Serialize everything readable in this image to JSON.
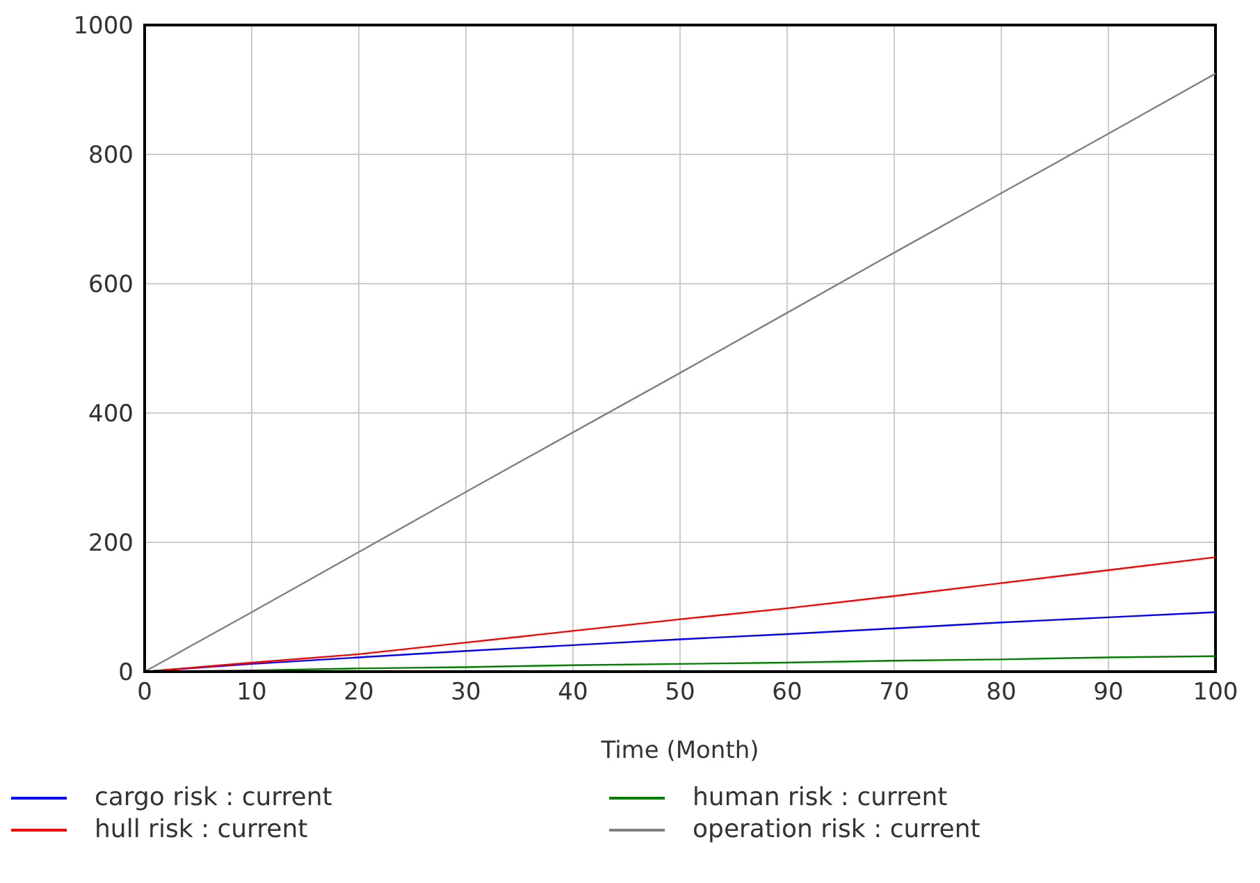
{
  "chart_data": {
    "type": "line",
    "xlabel": "Time (Month)",
    "x": [
      0,
      10,
      20,
      30,
      40,
      50,
      60,
      70,
      80,
      90,
      100
    ],
    "xlim": [
      0,
      100
    ],
    "xticks": [
      0,
      10,
      20,
      30,
      40,
      50,
      60,
      70,
      80,
      90,
      100
    ],
    "ylim": [
      0,
      1000
    ],
    "yticks": [
      0,
      200,
      400,
      600,
      800,
      1000
    ],
    "grid": true,
    "legend": "bottom",
    "marker": "none",
    "line_style": "solid",
    "series": [
      {
        "name": "cargo risk : current",
        "color": "#0000ff",
        "values": [
          0,
          12,
          22,
          32,
          41,
          50,
          58,
          67,
          76,
          84,
          92
        ]
      },
      {
        "name": "human risk : current",
        "color": "#008000",
        "values": [
          0,
          2,
          5,
          7,
          10,
          12,
          14,
          17,
          19,
          22,
          24
        ]
      },
      {
        "name": "hull risk : current",
        "color": "#ff0000",
        "values": [
          0,
          14,
          27,
          45,
          63,
          81,
          98,
          117,
          137,
          157,
          177
        ]
      },
      {
        "name": "operation risk : current",
        "color": "#808080",
        "values": [
          0,
          92,
          185,
          278,
          370,
          462,
          555,
          648,
          740,
          832,
          925
        ]
      }
    ]
  }
}
